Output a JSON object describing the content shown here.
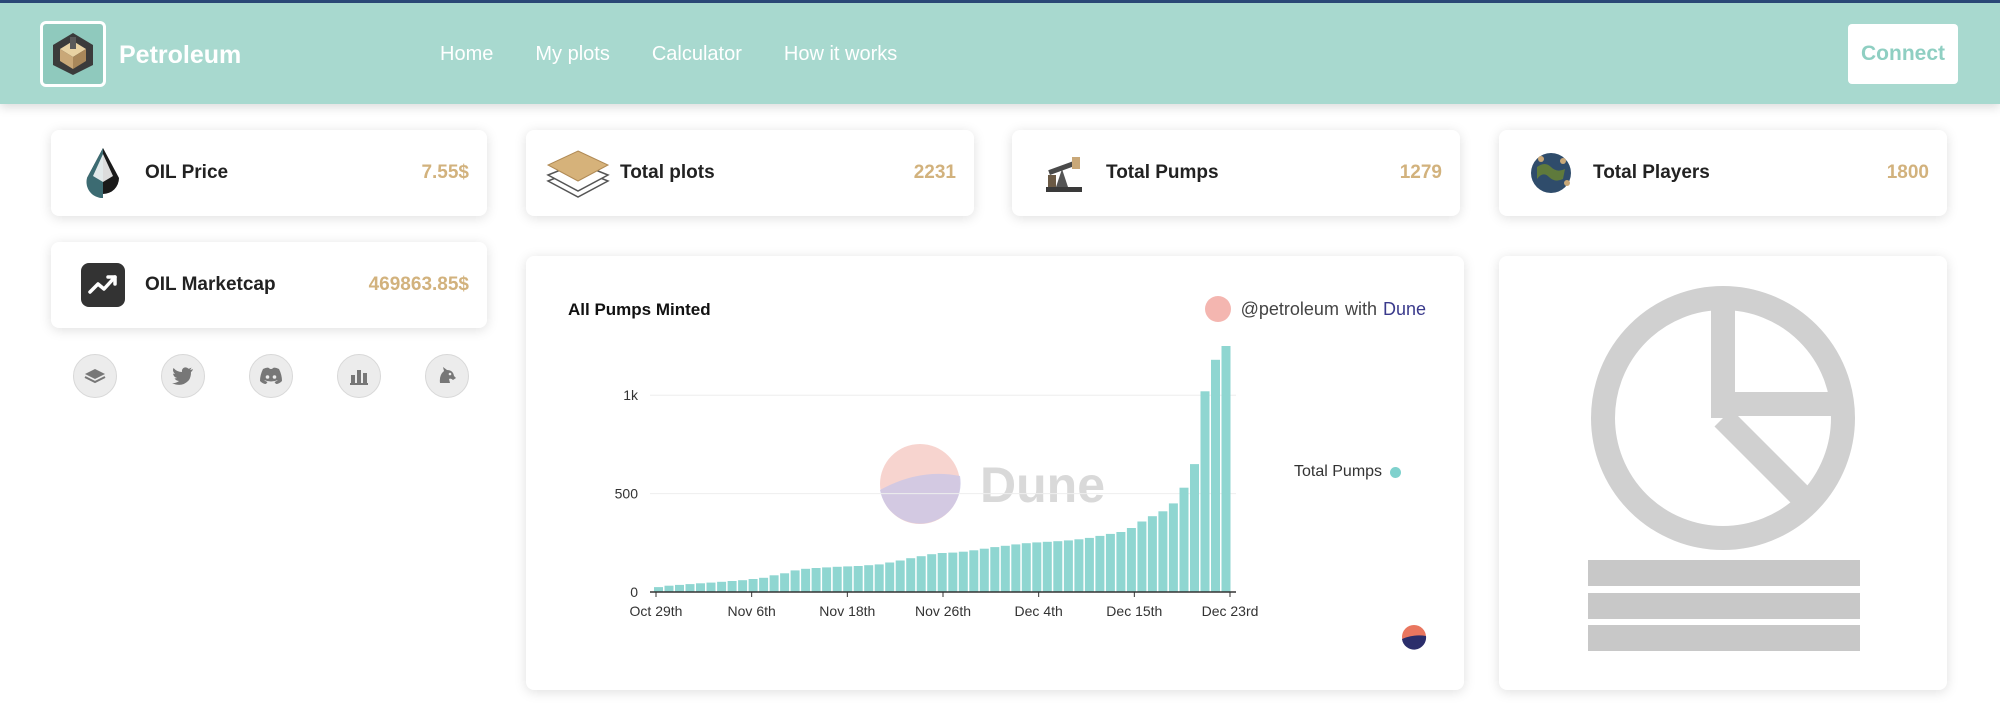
{
  "app": {
    "title": "Petroleum"
  },
  "nav": {
    "items": [
      "Home",
      "My plots",
      "Calculator",
      "How it works"
    ],
    "connect": "Connect"
  },
  "stats": {
    "oil_price": {
      "label": "OIL Price",
      "value": "7.55$"
    },
    "total_plots": {
      "label": "Total plots",
      "value": "2231"
    },
    "total_pumps": {
      "label": "Total Pumps",
      "value": "1279"
    },
    "total_players": {
      "label": "Total Players",
      "value": "1800"
    },
    "oil_marketcap": {
      "label": "OIL Marketcap",
      "value": "469863.85$"
    }
  },
  "socials": [
    "book-icon",
    "twitter-icon",
    "discord-icon",
    "bar-chart-icon",
    "unicorn-icon"
  ],
  "colors": {
    "header": "#a8d9cf",
    "accent_value": "#d2b27d",
    "bar": "#8fd6d1"
  },
  "dune": {
    "title": "All Pumps Minted",
    "credit_handle": "@petroleum",
    "credit_with": "with",
    "credit_brand": "Dune",
    "watermark": "Dune",
    "legend": "Total Pumps"
  },
  "chart_data": {
    "type": "bar",
    "title": "All Pumps Minted",
    "series": [
      {
        "name": "Total Pumps",
        "values": [
          25,
          32,
          36,
          40,
          44,
          48,
          52,
          56,
          60,
          66,
          72,
          85,
          95,
          110,
          118,
          122,
          125,
          128,
          130,
          132,
          136,
          140,
          150,
          160,
          172,
          182,
          192,
          198,
          200,
          205,
          212,
          220,
          228,
          235,
          242,
          248,
          252,
          255,
          258,
          262,
          268,
          275,
          285,
          295,
          305,
          325,
          358,
          385,
          410,
          450,
          530,
          650,
          1020,
          1180,
          1250
        ]
      }
    ],
    "x_tick_labels": [
      "Oct 29th",
      "Nov 6th",
      "Nov 18th",
      "Nov 26th",
      "Dec 4th",
      "Dec 15th",
      "Dec 23rd"
    ],
    "y_ticks": [
      0,
      500,
      1000
    ],
    "y_tick_labels": [
      "0",
      "500",
      "1k"
    ],
    "ylim": [
      0,
      1250
    ],
    "legend": "right",
    "grid": true
  }
}
